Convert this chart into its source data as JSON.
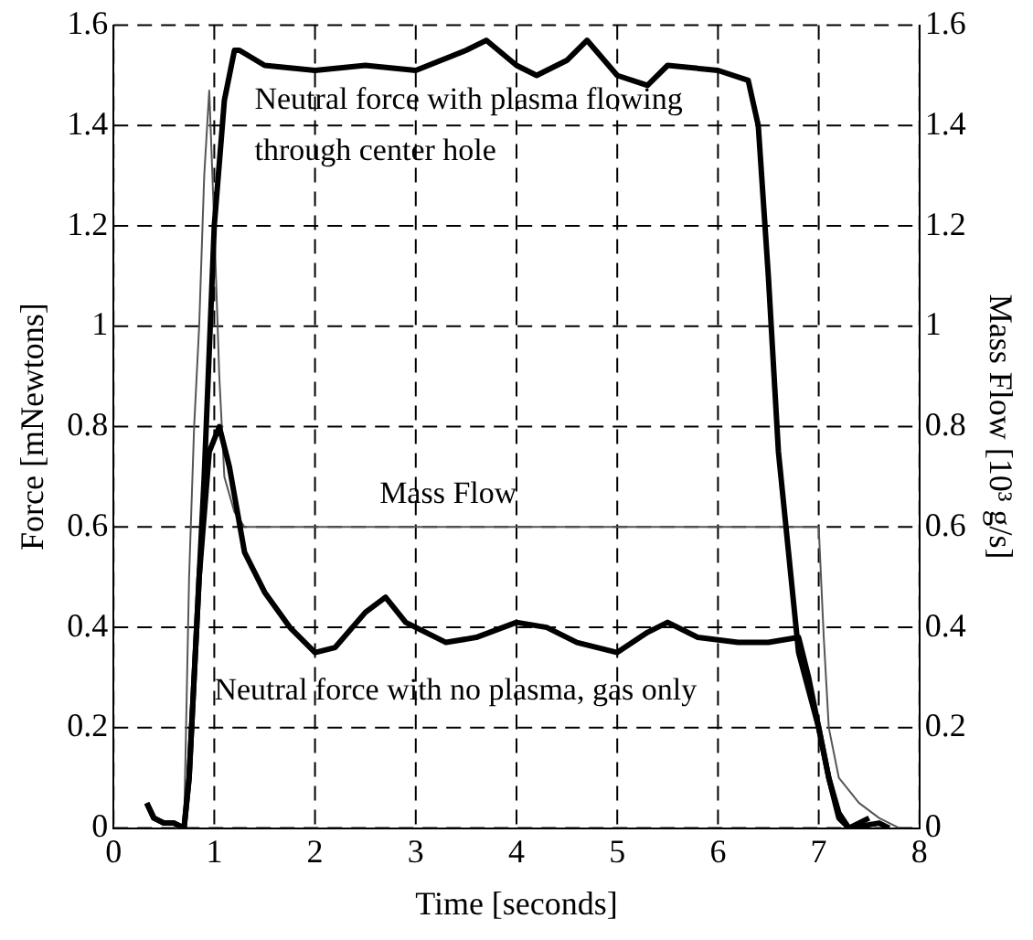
{
  "chart_data": {
    "type": "line",
    "xlabel": "Time [seconds]",
    "ylabel": "Force [mNewtons]",
    "y2label": "Mass Flow [10³ g/s]",
    "xlim": [
      0,
      8
    ],
    "xticks": [
      0,
      1,
      2,
      3,
      4,
      5,
      6,
      7,
      8
    ],
    "ylim": [
      0,
      1.6
    ],
    "yticks": [
      0,
      0.2,
      0.4,
      0.6,
      0.8,
      1,
      1.2,
      1.4,
      1.6
    ],
    "y2lim": [
      0,
      1.6
    ],
    "y2ticks": [
      0,
      0.2,
      0.4,
      0.6,
      0.8,
      1,
      1.2,
      1.4,
      1.6
    ],
    "grid": true,
    "legend": false,
    "marker": "none",
    "series": [
      {
        "color": "#000000",
        "x": [
          0.33,
          0.4,
          0.5,
          0.6,
          0.7,
          0.75,
          0.8,
          0.9,
          1.0,
          1.1,
          1.2,
          1.25,
          1.5,
          2,
          2.5,
          3,
          3.5,
          3.7,
          4,
          4.2,
          4.5,
          4.7,
          5,
          5.3,
          5.5,
          6,
          6.3,
          6.4,
          6.5,
          6.6,
          6.7,
          6.8,
          7.0,
          7.1,
          7.2,
          7.3,
          7.6,
          7.7
        ],
        "values": [
          0.05,
          0.02,
          0.01,
          0.01,
          0.0,
          0.1,
          0.3,
          0.7,
          1.2,
          1.45,
          1.55,
          1.55,
          1.52,
          1.51,
          1.52,
          1.51,
          1.55,
          1.57,
          1.52,
          1.5,
          1.53,
          1.57,
          1.5,
          1.48,
          1.52,
          1.51,
          1.49,
          1.4,
          1.1,
          0.75,
          0.55,
          0.35,
          0.2,
          0.1,
          0.02,
          0.0,
          0.01,
          0.0
        ]
      },
      {
        "color": "#000000",
        "x": [
          0.33,
          0.4,
          0.5,
          0.6,
          0.7,
          0.75,
          0.85,
          0.95,
          1.05,
          1.15,
          1.3,
          1.5,
          1.75,
          2,
          2.2,
          2.5,
          2.7,
          2.9,
          3.3,
          3.6,
          4,
          4.3,
          4.6,
          5,
          5.3,
          5.5,
          5.8,
          6.2,
          6.5,
          6.8,
          6.9,
          7.0,
          7.1,
          7.2,
          7.3,
          7.5
        ],
        "values": [
          0.05,
          0.02,
          0.01,
          0.01,
          0.0,
          0.1,
          0.5,
          0.75,
          0.8,
          0.72,
          0.55,
          0.47,
          0.4,
          0.35,
          0.36,
          0.43,
          0.46,
          0.41,
          0.37,
          0.38,
          0.41,
          0.4,
          0.37,
          0.35,
          0.39,
          0.41,
          0.38,
          0.37,
          0.37,
          0.38,
          0.3,
          0.2,
          0.1,
          0.03,
          0.0,
          0.02
        ]
      },
      {
        "color": "#555555",
        "axis": "y2",
        "x": [
          0.6,
          0.7,
          0.75,
          0.8,
          0.85,
          0.9,
          0.95,
          1.0,
          1.05,
          1.1,
          1.2,
          1.3,
          2,
          3,
          4,
          5,
          6,
          7.0,
          7.05,
          7.1,
          7.2,
          7.4,
          7.6,
          7.8
        ],
        "values": [
          0,
          0,
          0.5,
          0.8,
          1.0,
          1.3,
          1.47,
          1.2,
          0.9,
          0.7,
          0.63,
          0.6,
          0.6,
          0.6,
          0.6,
          0.6,
          0.6,
          0.6,
          0.38,
          0.2,
          0.1,
          0.05,
          0.02,
          0.0
        ]
      }
    ],
    "annotations": [
      "Neutral force with plasma flowing\nthrough center hole",
      "Mass Flow",
      "Neutral force with no plasma, gas only"
    ]
  }
}
